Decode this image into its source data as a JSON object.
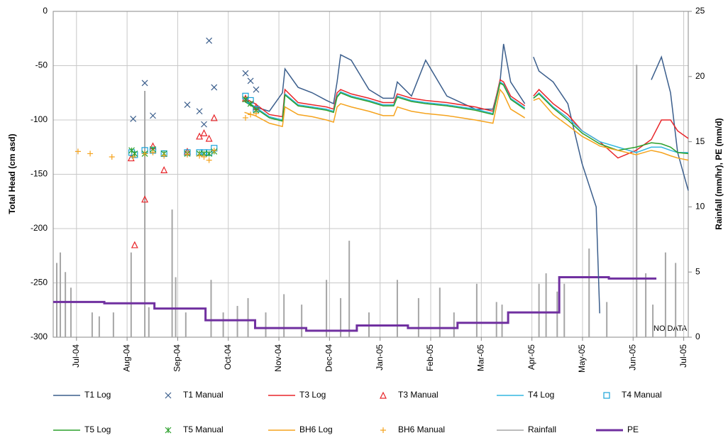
{
  "chart_data": {
    "type": "line",
    "y_label": "Total Head (cm asd)",
    "y2_label": "Rainfall (mm/hr), PE (mm/d)",
    "annotation": "NO DATA",
    "grid": true,
    "xlim": [
      -0.46,
      12.09
    ],
    "xticks": [
      {
        "value": 0,
        "label": "Jul-04"
      },
      {
        "value": 1,
        "label": "Aug-04"
      },
      {
        "value": 2,
        "label": "Sep-04"
      },
      {
        "value": 3,
        "label": "Oct-04"
      },
      {
        "value": 4,
        "label": "Nov-04"
      },
      {
        "value": 5,
        "label": "Dec-04"
      },
      {
        "value": 6,
        "label": "Jan-05"
      },
      {
        "value": 7,
        "label": "Feb-05"
      },
      {
        "value": 8,
        "label": "Mar-05"
      },
      {
        "value": 9,
        "label": "Apr-05"
      },
      {
        "value": 10,
        "label": "May-05"
      },
      {
        "value": 11,
        "label": "Jun-05"
      },
      {
        "value": 12,
        "label": "Jul-05"
      }
    ],
    "ylim": [
      -300,
      0
    ],
    "yticks": [
      -300,
      -250,
      -200,
      -150,
      -100,
      -50,
      0
    ],
    "y2lim": [
      0,
      25
    ],
    "y2ticks": [
      0,
      5,
      10,
      15,
      20,
      25
    ],
    "x": [
      3.32,
      3.53,
      3.81,
      4.07,
      4.12,
      4.38,
      4.66,
      4.94,
      5.08,
      5.15,
      5.22,
      5.43,
      5.78,
      6.06,
      6.27,
      6.34,
      6.62,
      6.9,
      7.32,
      7.88,
      8.23,
      8.37,
      8.44,
      8.58,
      8.86,
      8.95,
      9.03,
      9.14,
      9.42,
      9.71,
      9.99,
      10.27,
      10.34,
      10.7,
      11.06,
      11.36,
      11.56,
      11.74,
      11.88,
      12.09
    ],
    "series": [
      {
        "name": "T1 Log",
        "style": "line",
        "color": "#3b5e8c",
        "values": [
          -82,
          -88,
          -92,
          -75,
          -53,
          -70,
          -75,
          -82,
          -85,
          -65,
          -40,
          -45,
          -72,
          -80,
          -80,
          -65,
          -78,
          -45,
          -78,
          -90,
          -90,
          -65,
          -30,
          -65,
          -85,
          null,
          -42,
          -55,
          -65,
          -85,
          -140,
          -180,
          -278,
          null,
          null,
          -63,
          -42,
          -75,
          -130,
          -165
        ]
      },
      {
        "name": "T1 Manual",
        "style": "marker",
        "marker": "x",
        "color": "#3b5e8c",
        "x": [
          1.12,
          1.35,
          1.51,
          2.19,
          2.43,
          2.52,
          2.62,
          2.72,
          3.34,
          3.44,
          3.55
        ],
        "values": [
          -99,
          -66,
          -96,
          -86,
          -92,
          -104,
          -27,
          -70,
          -57,
          -64,
          -72
        ]
      },
      {
        "name": "T3 Log",
        "style": "line",
        "color": "#e8262a",
        "values": [
          -80,
          -85,
          -95,
          -97,
          -72,
          -84,
          -86,
          -88,
          -90,
          -75,
          -72,
          -76,
          -80,
          -84,
          -84,
          -76,
          -80,
          -82,
          -84,
          -88,
          -92,
          -63,
          -65,
          -78,
          -87,
          null,
          -78,
          -72,
          -85,
          -95,
          -110,
          -118,
          -120,
          -135,
          -128,
          -118,
          -100,
          -100,
          -110,
          -117
        ]
      },
      {
        "name": "T3 Manual",
        "style": "marker",
        "marker": "triangle",
        "color": "#e8262a",
        "x": [
          1.08,
          1.15,
          1.35,
          1.51,
          1.73,
          2.19,
          2.43,
          2.52,
          2.62,
          2.72,
          3.34,
          3.55
        ],
        "values": [
          -135,
          -215,
          -173,
          -124,
          -146,
          -129,
          -115,
          -112,
          -117,
          -98,
          -80,
          -88
        ]
      },
      {
        "name": "T4 Log",
        "style": "line",
        "color": "#33b7e0",
        "values": [
          -82,
          -88,
          -97,
          -100,
          -76,
          -86,
          -88,
          -90,
          -92,
          -78,
          -74,
          -78,
          -82,
          -86,
          -86,
          -78,
          -82,
          -84,
          -86,
          -90,
          -94,
          -65,
          -67,
          -80,
          -89,
          null,
          -80,
          -75,
          -88,
          -98,
          -110,
          -118,
          -120,
          -125,
          -130,
          -125,
          -125,
          -128,
          -130,
          -130
        ]
      },
      {
        "name": "T4 Manual",
        "style": "marker",
        "marker": "square",
        "color": "#1aa3d9",
        "x": [
          1.09,
          1.15,
          1.35,
          1.51,
          1.73,
          2.19,
          2.43,
          2.52,
          2.62,
          2.72,
          3.34,
          3.44,
          3.55
        ],
        "values": [
          -130,
          -132,
          -128,
          -128,
          -131,
          -130,
          -130,
          -130,
          -130,
          -126,
          -78,
          -82,
          -90
        ]
      },
      {
        "name": "T5 Log",
        "style": "line",
        "color": "#2ca02c",
        "values": [
          -83,
          -89,
          -98,
          -101,
          -77,
          -87,
          -89,
          -91,
          -93,
          -79,
          -75,
          -79,
          -83,
          -87,
          -87,
          -79,
          -83,
          -85,
          -87,
          -91,
          -95,
          -66,
          -68,
          -81,
          -90,
          null,
          -80,
          -76,
          -89,
          -100,
          -112,
          -120,
          -122,
          -128,
          -125,
          -121,
          -122,
          -125,
          -130,
          -131
        ]
      },
      {
        "name": "T5 Manual",
        "style": "marker",
        "marker": "asterisk",
        "color": "#2ca02c",
        "x": [
          1.09,
          1.15,
          1.35,
          1.51,
          1.73,
          2.19,
          2.43,
          2.52,
          2.62,
          2.72,
          3.34,
          3.44,
          3.55
        ],
        "values": [
          -128,
          -131,
          -131,
          -127,
          -131,
          -131,
          -131,
          -131,
          -131,
          -129,
          -81,
          -85,
          -91
        ]
      },
      {
        "name": "BH6 Log",
        "style": "line",
        "color": "#f5a31e",
        "values": [
          -93,
          -96,
          -103,
          -106,
          -88,
          -95,
          -97,
          -100,
          -102,
          -88,
          -85,
          -88,
          -92,
          -96,
          -96,
          -88,
          -92,
          -94,
          -96,
          -100,
          -103,
          -72,
          -76,
          -90,
          -98,
          null,
          -82,
          -80,
          -95,
          -105,
          -115,
          -122,
          -124,
          -128,
          -132,
          -128,
          -130,
          -133,
          -135,
          -137
        ]
      },
      {
        "name": "BH6 Manual",
        "style": "marker",
        "marker": "plus",
        "color": "#f5a31e",
        "x": [
          0.03,
          0.27,
          0.7,
          1.12,
          1.35,
          1.51,
          1.73,
          2.19,
          2.43,
          2.52,
          2.62,
          2.72,
          3.34,
          3.44,
          3.55
        ],
        "values": [
          -129,
          -131,
          -134,
          -134,
          -131,
          -130,
          -133,
          -132,
          -133,
          -134,
          -137,
          -128,
          -98,
          -95,
          -94
        ]
      },
      {
        "name": "Rainfall",
        "style": "bar",
        "axis": "y2",
        "color": "#a6a6a6",
        "x": [
          -0.39,
          -0.32,
          -0.22,
          -0.11,
          0.31,
          0.45,
          0.73,
          1.08,
          1.35,
          1.43,
          1.89,
          1.96,
          2.16,
          2.66,
          2.9,
          3.18,
          3.39,
          3.74,
          4.1,
          4.45,
          4.94,
          5.22,
          5.39,
          5.78,
          6.34,
          6.76,
          7.18,
          7.46,
          7.91,
          8.3,
          8.41,
          9.14,
          9.28,
          9.5,
          9.64,
          10.13,
          10.48,
          11.07,
          11.25,
          11.39,
          11.64,
          11.84
        ],
        "values": [
          5.7,
          6.5,
          5.0,
          3.8,
          1.9,
          1.6,
          1.9,
          6.5,
          18.9,
          2.3,
          9.8,
          4.6,
          1.9,
          4.4,
          1.9,
          2.4,
          3.0,
          1.9,
          3.3,
          2.5,
          4.4,
          3.0,
          7.4,
          1.9,
          4.4,
          3.0,
          3.8,
          1.9,
          4.1,
          2.7,
          2.5,
          4.1,
          4.9,
          3.5,
          4.1,
          6.8,
          2.7,
          20.9,
          4.9,
          2.5,
          6.5,
          5.7
        ]
      },
      {
        "name": "PE",
        "style": "step",
        "axis": "y2",
        "color": "#7030a0",
        "x": [
          -0.46,
          0.55,
          1.54,
          2.55,
          3.53,
          4.54,
          5.54,
          6.55,
          7.53,
          8.53,
          9.54,
          10.52,
          11.46
        ],
        "values": [
          2.7,
          2.6,
          2.2,
          1.3,
          0.7,
          0.5,
          0.9,
          0.7,
          1.1,
          1.9,
          4.6,
          4.5,
          4.5
        ]
      }
    ]
  }
}
